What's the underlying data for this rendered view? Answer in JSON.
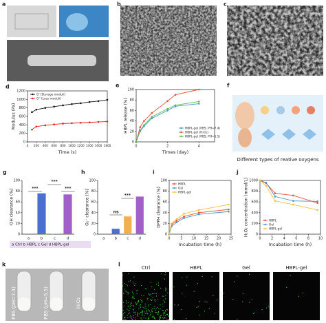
{
  "panels": {
    "a": {
      "label": "a"
    },
    "b": {
      "label": "b"
    },
    "c": {
      "label": "c"
    },
    "f": {
      "label": "f",
      "caption": "Different types of reative oxygens"
    },
    "k": {
      "label": "k",
      "labels": [
        "PBS (pH=7.4)",
        "PBS (pH=5.5)",
        "H₂O₂"
      ]
    },
    "l": {
      "label": "l",
      "titles": [
        "Ctrl",
        "HBPL",
        "Gel",
        "HBPL-gel"
      ]
    }
  },
  "chart_data": [
    {
      "panel": "d",
      "type": "line",
      "xlabel": "Time (s)",
      "ylabel": "Modulus (Pa)",
      "x": [
        100,
        200,
        400,
        600,
        800,
        1000,
        1200,
        1400,
        1600,
        1800
      ],
      "series": [
        {
          "name": "G' (Storage moduli)",
          "color": "#111111",
          "values": [
            700,
            760,
            800,
            830,
            860,
            890,
            910,
            940,
            960,
            990
          ]
        },
        {
          "name": "G'' (Loss moduli)",
          "color": "#e02020",
          "values": [
            290,
            360,
            390,
            410,
            430,
            440,
            450,
            460,
            470,
            480
          ]
        }
      ],
      "xlim": [
        0,
        1800
      ],
      "xticks": [
        0,
        200,
        400,
        600,
        800,
        1000,
        1200,
        1400,
        1600,
        1800
      ],
      "ylim": [
        0,
        1200
      ],
      "yticks": [
        0,
        200,
        400,
        600,
        800,
        1000,
        1200
      ],
      "legend": "top-left"
    },
    {
      "panel": "e",
      "type": "line",
      "xlabel": "Times (day)",
      "ylabel": "HBPL release (%)",
      "x": [
        0,
        0.25,
        0.5,
        1,
        2,
        2.5,
        4
      ],
      "series": [
        {
          "name": "HBPL-gel (PBS, PH=7.4)",
          "color": "#4a90c8",
          "values": [
            0,
            20,
            30,
            45,
            60,
            68,
            73
          ]
        },
        {
          "name": "HBPL-gel (H₂O₂)",
          "color": "#e8503a",
          "values": [
            0,
            28,
            40,
            55,
            78,
            90,
            100
          ]
        },
        {
          "name": "HBPL-gel (PBS, PH=5.5)",
          "color": "#5cb85c",
          "values": [
            0,
            22,
            32,
            48,
            63,
            70,
            77
          ]
        }
      ],
      "xlim": [
        0,
        5
      ],
      "xticks": [
        0,
        2,
        4
      ],
      "ylim": [
        0,
        100
      ],
      "yticks": [
        0,
        20,
        40,
        60,
        80,
        100
      ],
      "legend": "bottom-right"
    },
    {
      "panel": "g",
      "type": "bar",
      "ylabel": "·OH clearance (%)",
      "categories": [
        "a",
        "b",
        "c",
        "d"
      ],
      "values": [
        1,
        76,
        1,
        74
      ],
      "colors": [
        "#999999",
        "#4a6fd0",
        "#f0b050",
        "#a060c8"
      ],
      "ylim": [
        0,
        100
      ],
      "yticks": [
        0,
        20,
        40,
        60,
        80,
        100
      ],
      "annotations": [
        "***",
        "***",
        "***"
      ],
      "note": "a Ctrl  b HBPL  c Gel  d HBPL-gel"
    },
    {
      "panel": "h",
      "type": "bar",
      "ylabel": "O₂⁻ clearance (%)",
      "categories": [
        "a",
        "b",
        "c",
        "d"
      ],
      "values": [
        1,
        10,
        33,
        70
      ],
      "colors": [
        "#999999",
        "#4a6fd0",
        "#f0b050",
        "#a060c8"
      ],
      "ylim": [
        0,
        100
      ],
      "yticks": [
        0,
        20,
        40,
        60,
        80,
        100
      ],
      "annotations": [
        "ns",
        "***"
      ]
    },
    {
      "panel": "i",
      "type": "line",
      "xlabel": "Incubation time (h)",
      "ylabel": "DPPH clearance (%)",
      "x": [
        0,
        1,
        3,
        6,
        12,
        24
      ],
      "series": [
        {
          "name": "HBPL",
          "color": "#e8503a",
          "values": [
            0,
            18,
            25,
            33,
            40,
            46
          ]
        },
        {
          "name": "Gel",
          "color": "#4a90c8",
          "values": [
            0,
            15,
            22,
            30,
            37,
            42
          ]
        },
        {
          "name": "HBPL-gel",
          "color": "#f0c040",
          "values": [
            0,
            20,
            28,
            38,
            45,
            55
          ]
        }
      ],
      "xlim": [
        0,
        25
      ],
      "xticks": [
        0,
        5,
        10,
        15,
        20,
        25
      ],
      "ylim": [
        0,
        100
      ],
      "yticks": [
        0,
        20,
        40,
        60,
        80,
        100
      ],
      "legend": "top-left"
    },
    {
      "panel": "j",
      "type": "line",
      "xlabel": "Incubation time (h)",
      "ylabel": "H₂O₂ concentration (mmol/L)",
      "x": [
        0,
        1,
        2.5,
        5.5,
        9.5
      ],
      "series": [
        {
          "name": "HBPL",
          "color": "#e8503a",
          "values": [
            1000,
            950,
            760,
            720,
            580
          ]
        },
        {
          "name": "Gel",
          "color": "#4a90c8",
          "values": [
            1000,
            960,
            700,
            620,
            610
          ]
        },
        {
          "name": "HBPL-gel",
          "color": "#f0c040",
          "values": [
            1000,
            900,
            620,
            550,
            450
          ]
        }
      ],
      "xlim": [
        0,
        10
      ],
      "xticks": [
        0,
        2,
        4,
        6,
        8,
        10
      ],
      "ylim": [
        0,
        1000
      ],
      "yticks": [
        0,
        200,
        400,
        600,
        800,
        1000
      ],
      "legend": "bottom-left"
    }
  ]
}
